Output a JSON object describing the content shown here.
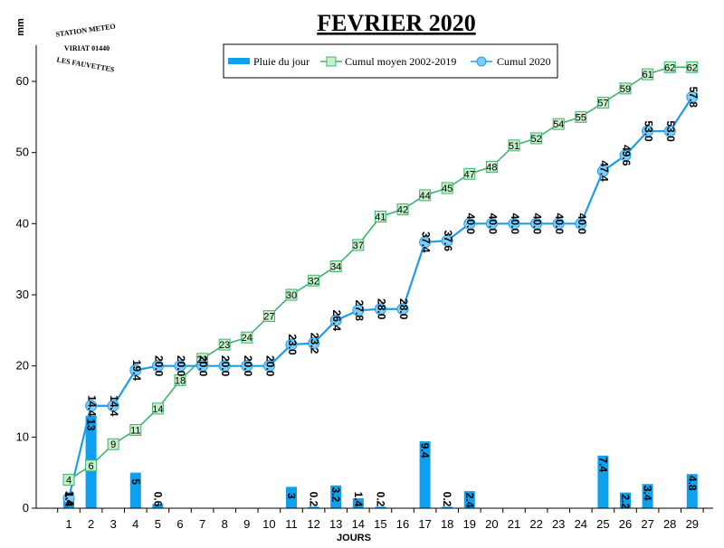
{
  "chart_data": {
    "type": "bar+line",
    "title": "FEVRIER 2020",
    "xlabel": "JOURS",
    "ylabel": "mm",
    "ylim": [
      0,
      65
    ],
    "yticks": [
      0,
      10,
      20,
      30,
      40,
      50,
      60
    ],
    "categories": [
      "1",
      "2",
      "3",
      "4",
      "5",
      "6",
      "7",
      "8",
      "9",
      "10",
      "11",
      "12",
      "13",
      "14",
      "15",
      "16",
      "17",
      "18",
      "19",
      "20",
      "21",
      "22",
      "23",
      "24",
      "25",
      "26",
      "27",
      "28",
      "29"
    ],
    "legend_position": "top",
    "grid": false,
    "logo": {
      "line1": "STATION METEO",
      "line2": "VIRIAT 01440",
      "line3": "LES FAUVETTES"
    },
    "series": [
      {
        "name": "Pluie du jour",
        "kind": "bar",
        "color": "#0f9fef",
        "values": [
          1.4,
          13,
          null,
          5,
          0.6,
          null,
          null,
          null,
          null,
          null,
          3,
          0.2,
          3.2,
          1.4,
          0.2,
          null,
          9.4,
          0.2,
          2.4,
          null,
          null,
          null,
          null,
          null,
          7.4,
          2.2,
          3.4,
          null,
          4.8
        ],
        "labels": [
          "1.4",
          "13",
          "",
          "5",
          "0.6",
          "",
          "",
          "",
          "",
          "",
          "3",
          "0.2",
          "3.2",
          "1.4",
          "0.2",
          "",
          "9.4",
          "0.2",
          "2.4",
          "",
          "",
          "",
          "",
          "",
          "7.4",
          "2.2",
          "3.4",
          "",
          "4.8"
        ]
      },
      {
        "name": "Cumul moyen 2002-2019",
        "kind": "line",
        "color": "#3cb371",
        "values": [
          4,
          6,
          9,
          11,
          14,
          18,
          21,
          23,
          24,
          27,
          30,
          32,
          34,
          37,
          41,
          42,
          44,
          45,
          47,
          48,
          51,
          52,
          54,
          55,
          57,
          59,
          61,
          62,
          62
        ],
        "labels": [
          "4",
          "6",
          "9",
          "11",
          "14",
          "18",
          "21",
          "23",
          "24",
          "27",
          "30",
          "32",
          "34",
          "37",
          "41",
          "42",
          "44",
          "45",
          "47",
          "48",
          "51",
          "52",
          "54",
          "55",
          "57",
          "59",
          "61",
          "62",
          "62"
        ]
      },
      {
        "name": "Cumul 2020",
        "kind": "line",
        "color": "#1e9be9",
        "values": [
          1.4,
          14.4,
          14.4,
          19.4,
          20.0,
          20.0,
          20.0,
          20.0,
          20.0,
          20.0,
          23.0,
          23.2,
          26.4,
          27.8,
          28.0,
          28.0,
          37.4,
          37.6,
          40.0,
          40.0,
          40.0,
          40.0,
          40.0,
          40.0,
          47.4,
          49.6,
          53.0,
          53.0,
          57.8
        ],
        "labels": [
          "1.4",
          "14.4",
          "14.4",
          "19.4",
          "20.0",
          "20.0",
          "20.0",
          "20.0",
          "20.0",
          "20.0",
          "23.0",
          "23.2",
          "26.4",
          "27.8",
          "28.0",
          "28.0",
          "37.4",
          "37.6",
          "40.0",
          "40.0",
          "40.0",
          "40.0",
          "40.0",
          "40.0",
          "47.4",
          "49.6",
          "53.0",
          "53.0",
          "57.8"
        ]
      }
    ]
  }
}
